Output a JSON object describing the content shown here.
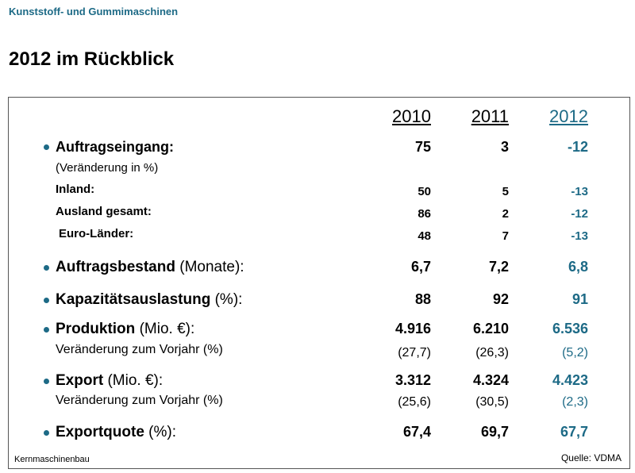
{
  "header": {
    "section": "Kunststoff- und Gummimaschinen",
    "title": "2012 im Rückblick"
  },
  "table": {
    "columns": [
      "2010",
      "2011",
      "2012"
    ],
    "rows": [
      {
        "term": "Auftragseingang:",
        "values": [
          "75",
          "3",
          "-12"
        ]
      },
      {
        "detail": "(Veränderung in %)"
      },
      {
        "term": "Inland:",
        "values": [
          "50",
          "5",
          "-13"
        ]
      },
      {
        "term": "Ausland gesamt:",
        "values": [
          "86",
          "2",
          "-12"
        ]
      },
      {
        "term": "Euro-Länder:",
        "values": [
          "48",
          "7",
          "-13"
        ]
      },
      {
        "term": "Auftragsbestand",
        "detail": "(Monate):",
        "values": [
          "6,7",
          "7,2",
          "6,8"
        ]
      },
      {
        "term": "Kapazitätsauslastung",
        "detail": "(%):",
        "values": [
          "88",
          "92",
          "91"
        ]
      },
      {
        "term": "Produktion",
        "detail": "(Mio. €):",
        "values": [
          "4.916",
          "6.210",
          "6.536"
        ]
      },
      {
        "detail": "Veränderung zum Vorjahr (%)",
        "values": [
          "(27,7)",
          "(26,3)",
          "(5,2)"
        ]
      },
      {
        "term": "Export",
        "detail": "(Mio. €):",
        "values": [
          "3.312",
          "4.324",
          "4.423"
        ]
      },
      {
        "detail": "Veränderung zum Vorjahr (%)",
        "values": [
          "(25,6)",
          "(30,5)",
          "(2,3)"
        ]
      },
      {
        "term": "Exportquote",
        "detail": "(%):",
        "values": [
          "67,4",
          "69,7",
          "67,7"
        ]
      }
    ]
  },
  "footer": {
    "note": "Kernmaschinenbau",
    "source": "Quelle: VDMA"
  }
}
